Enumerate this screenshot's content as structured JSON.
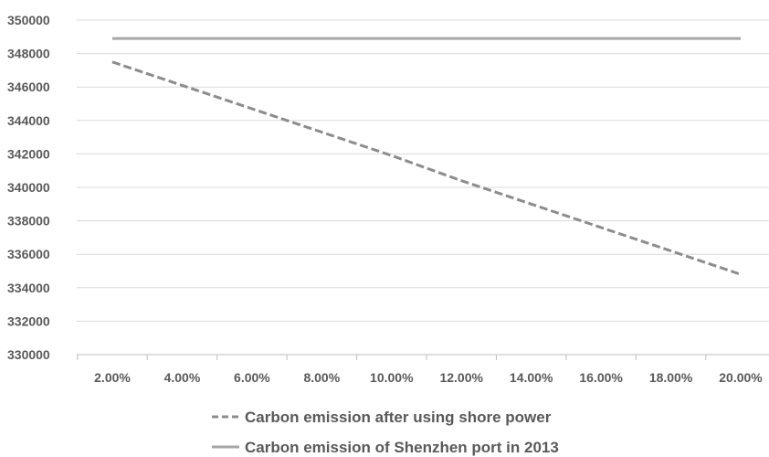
{
  "chart_data": {
    "type": "line",
    "title": "",
    "xlabel": "",
    "ylabel": "",
    "categories": [
      "2.00%",
      "4.00%",
      "6.00%",
      "8.00%",
      "10.00%",
      "12.00%",
      "14.00%",
      "16.00%",
      "18.00%",
      "20.00%"
    ],
    "ylim": [
      330000,
      350000
    ],
    "yticks": [
      "330000",
      "332000",
      "334000",
      "336000",
      "338000",
      "340000",
      "342000",
      "344000",
      "346000",
      "348000",
      "350000"
    ],
    "grid": true,
    "legend_position": "bottom",
    "series": [
      {
        "name": "Carbon emission after using shore power",
        "style": "dashed",
        "color": "#8c8c8c",
        "values": [
          347500,
          346100,
          344700,
          343300,
          341900,
          340400,
          339000,
          337600,
          336200,
          334800
        ]
      },
      {
        "name": "Carbon emission of Shenzhen port in 2013",
        "style": "solid",
        "color": "#a6a6a6",
        "values": [
          348900,
          348900,
          348900,
          348900,
          348900,
          348900,
          348900,
          348900,
          348900,
          348900
        ]
      }
    ]
  }
}
